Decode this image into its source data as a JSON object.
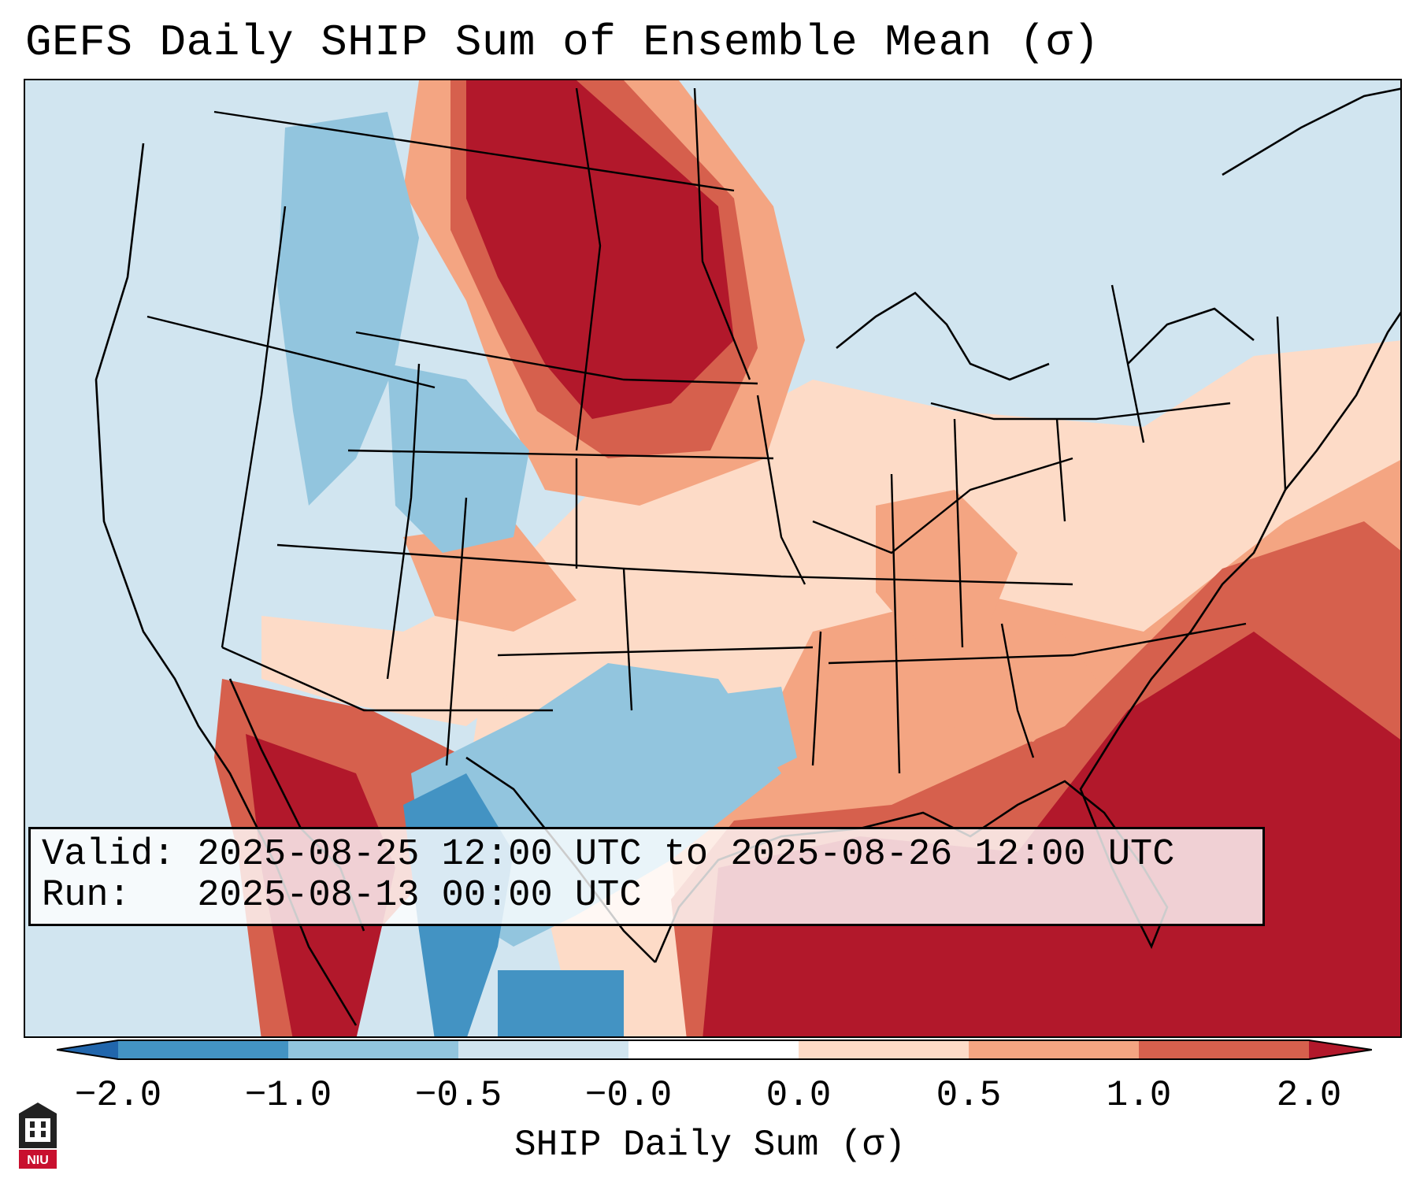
{
  "title": "GEFS Daily SHIP Sum of Ensemble Mean (σ)",
  "info": {
    "valid": "Valid: 2025-08-25 12:00 UTC to 2025-08-26 12:00 UTC",
    "run": "Run:   2025-08-13 00:00 UTC"
  },
  "colorbar": {
    "label": "SHIP Daily Sum (σ)",
    "ticks": [
      "−2.0",
      "−1.0",
      "−0.5",
      "−0.0",
      "0.0",
      "0.5",
      "1.0",
      "2.0"
    ],
    "colors": [
      "#2166ac",
      "#4393c3",
      "#92c5de",
      "#d1e5f0",
      "#ffffff",
      "#fddbc7",
      "#f4a582",
      "#d6604d",
      "#b2182b"
    ]
  },
  "logo": {
    "text": "NIU"
  }
}
